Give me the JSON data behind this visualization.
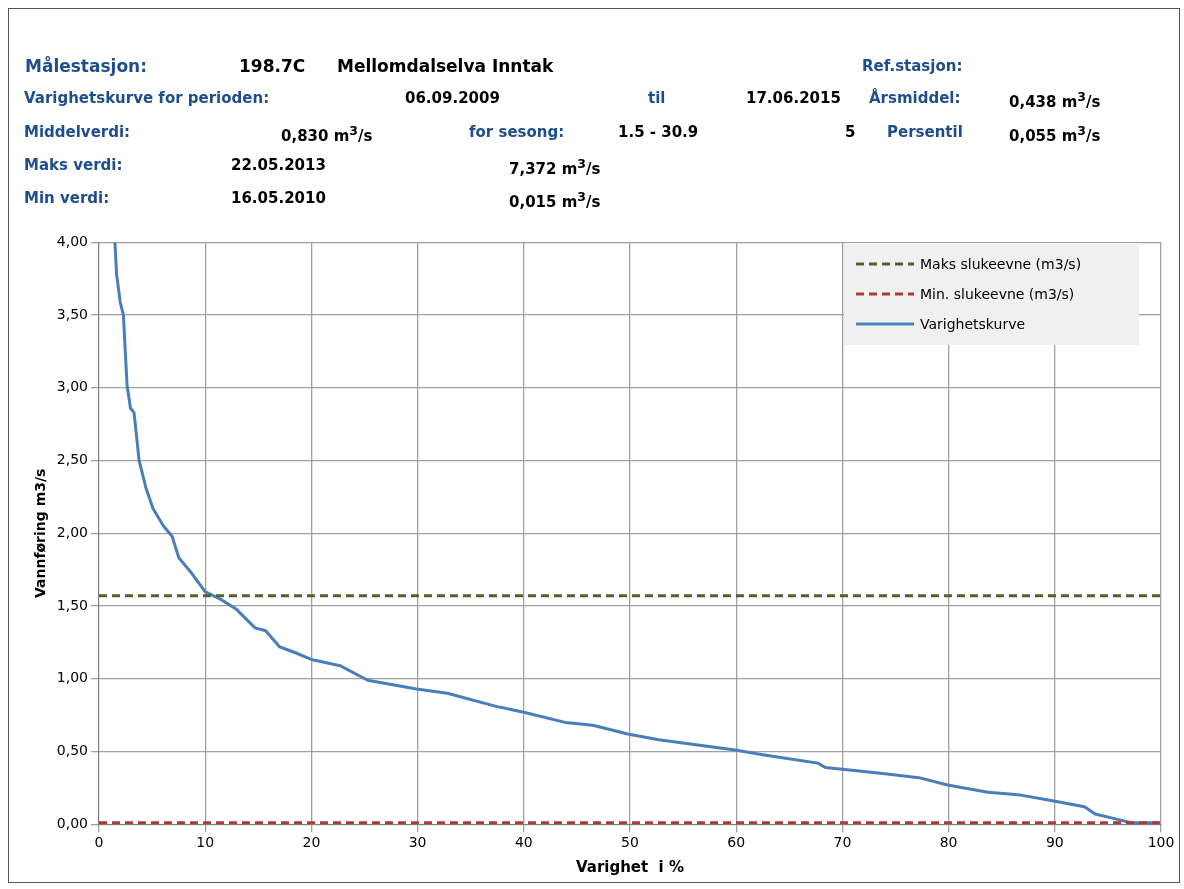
{
  "chart_data": {
    "type": "line",
    "xlabel": "Varighet  i %",
    "ylabel": "Vannføring m3/s",
    "annotations": [
      "Målestasjon:",
      "198.7C",
      "Mellomdalselva Inntak",
      "Ref.stasjon:",
      "Varighetskurve for perioden:",
      "06.09.2009",
      "til",
      "17.06.2015",
      "Årsmiddel:",
      "0,438 m$^{3}$/s",
      "Middelverdi:",
      "0,830 m$^{3}$/s",
      "for sesong:",
      "1.5 - 30.9",
      "5",
      "Persentil",
      "0,055 m$^{3}$/s",
      "Maks verdi:",
      "22.05.2013",
      "7,372 m$^{3}$/s",
      "Min verdi:",
      "16.05.2010",
      "0,015 m$^{3}$/s"
    ],
    "xlim": [
      0,
      100
    ],
    "xticks": [
      0,
      10,
      20,
      30,
      40,
      50,
      60,
      70,
      80,
      90,
      100
    ],
    "ylim": [
      0,
      4
    ],
    "yticks": [
      {
        "value": 0,
        "label": "0,00"
      },
      {
        "value": 0.5,
        "label": "0,50"
      },
      {
        "value": 1,
        "label": "1,00"
      },
      {
        "value": 1.5,
        "label": "1,50"
      },
      {
        "value": 2,
        "label": "2,00"
      },
      {
        "value": 2.5,
        "label": "2,50"
      },
      {
        "value": 3,
        "label": "3,00"
      },
      {
        "value": 3.5,
        "label": "3,50"
      },
      {
        "value": 4,
        "label": "4,00"
      }
    ],
    "grid": true,
    "legend": "top right",
    "marker": "none",
    "line_style": "solid",
    "ref_lines": [
      {
        "axis": "y",
        "value": 1.57,
        "label": "Maks slukeevne (m3/s)",
        "color": "#4f6228",
        "line_style": "dashed"
      },
      {
        "axis": "y",
        "value": 0.01,
        "label": "Min. slukeevne (m3/s)",
        "color": "#b03a33",
        "line_style": "dashed"
      }
    ],
    "series": [
      {
        "name": "Varighetskurve",
        "color": "#4a7ebb",
        "x": [
          1.5,
          1.66,
          2.0,
          2.3,
          2.64,
          2.97,
          3.3,
          3.78,
          4.43,
          5.09,
          6.07,
          6.88,
          7.53,
          8.68,
          9.98,
          11.6,
          12.9,
          14.7,
          15.7,
          17.0,
          18.8,
          20.1,
          22.7,
          25.3,
          29.9,
          32.8,
          37.4,
          40.0,
          43.9,
          46.5,
          49.8,
          52.7,
          59.9,
          63.1,
          67.7,
          68.4,
          73.6,
          77.2,
          79.9,
          83.7,
          86.8,
          89.9,
          92.8,
          93.8,
          95.8,
          97.1,
          99.8
        ],
        "values": [
          4.0,
          3.78,
          3.59,
          3.5,
          3.02,
          2.86,
          2.83,
          2.5,
          2.31,
          2.17,
          2.05,
          1.98,
          1.83,
          1.73,
          1.6,
          1.54,
          1.48,
          1.35,
          1.33,
          1.22,
          1.17,
          1.13,
          1.09,
          0.99,
          0.93,
          0.9,
          0.81,
          0.77,
          0.7,
          0.68,
          0.62,
          0.58,
          0.51,
          0.47,
          0.42,
          0.39,
          0.35,
          0.32,
          0.27,
          0.22,
          0.2,
          0.16,
          0.12,
          0.07,
          0.035,
          0.012,
          0.01
        ]
      }
    ]
  }
}
